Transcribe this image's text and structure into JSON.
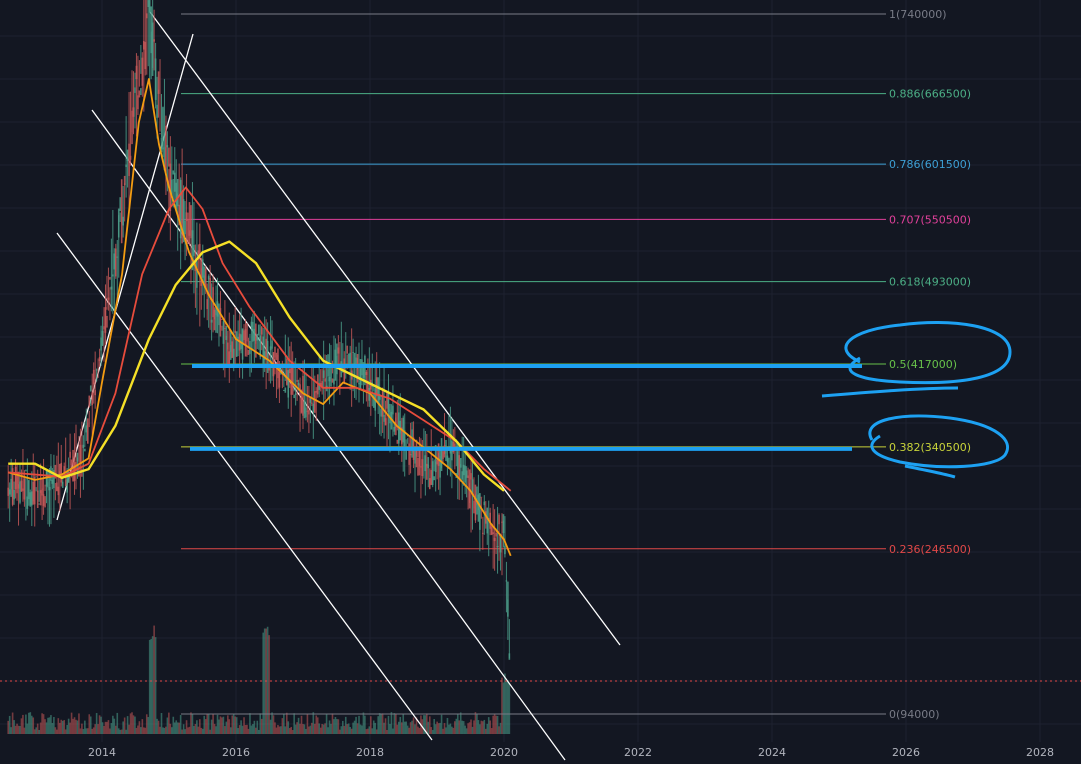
{
  "chart_data": {
    "type": "line",
    "title": "",
    "xlabel": "",
    "ylabel": "",
    "x_ticks": [
      "2014",
      "2016",
      "2018",
      "2020",
      "2022",
      "2024",
      "2026",
      "2028"
    ],
    "x_range": [
      2012.6,
      2028.5
    ],
    "y_range": [
      94000,
      740000
    ],
    "grid": true,
    "fib_levels": [
      {
        "ratio": "1",
        "price": "740000",
        "color": "#787b86"
      },
      {
        "ratio": "0.886",
        "price": "666500",
        "color": "#4caf86"
      },
      {
        "ratio": "0.786",
        "price": "601500",
        "color": "#3d9fd4"
      },
      {
        "ratio": "0.707",
        "price": "550500",
        "color": "#e0409a"
      },
      {
        "ratio": "0.618",
        "price": "493000",
        "color": "#4caf86"
      },
      {
        "ratio": "0.5",
        "price": "417000",
        "color": "#67c24a"
      },
      {
        "ratio": "0.382",
        "price": "340500",
        "color": "#c7d23a"
      },
      {
        "ratio": "0.236",
        "price": "246500",
        "color": "#e04848"
      },
      {
        "ratio": "0",
        "price": "94000",
        "color": "#787b86"
      }
    ],
    "series": [
      {
        "color": "#f39c12",
        "points": [
          [
            2012.6,
            317000
          ],
          [
            2013.0,
            310000
          ],
          [
            2013.4,
            315000
          ],
          [
            2013.8,
            330000
          ],
          [
            2014.0,
            400000
          ],
          [
            2014.3,
            500000
          ],
          [
            2014.55,
            640000
          ],
          [
            2014.7,
            680000
          ],
          [
            2014.85,
            620000
          ],
          [
            2015.0,
            580000
          ],
          [
            2015.3,
            520000
          ],
          [
            2015.6,
            480000
          ],
          [
            2016.0,
            440000
          ],
          [
            2016.5,
            420000
          ],
          [
            2017.0,
            390000
          ],
          [
            2017.3,
            380000
          ],
          [
            2017.6,
            400000
          ],
          [
            2018.0,
            390000
          ],
          [
            2018.4,
            360000
          ],
          [
            2018.8,
            340000
          ],
          [
            2019.2,
            320000
          ],
          [
            2019.5,
            300000
          ],
          [
            2019.8,
            270000
          ],
          [
            2020.0,
            255000
          ],
          [
            2020.1,
            240000
          ]
        ]
      },
      {
        "color": "#e74c3c",
        "points": [
          [
            2012.6,
            317000
          ],
          [
            2013.4,
            313000
          ],
          [
            2013.8,
            325000
          ],
          [
            2014.2,
            390000
          ],
          [
            2014.6,
            500000
          ],
          [
            2015.0,
            560000
          ],
          [
            2015.25,
            580000
          ],
          [
            2015.5,
            560000
          ],
          [
            2015.8,
            510000
          ],
          [
            2016.2,
            470000
          ],
          [
            2016.8,
            420000
          ],
          [
            2017.3,
            395000
          ],
          [
            2017.8,
            395000
          ],
          [
            2018.3,
            385000
          ],
          [
            2018.8,
            365000
          ],
          [
            2019.3,
            345000
          ],
          [
            2019.7,
            320000
          ],
          [
            2020.1,
            300000
          ]
        ]
      },
      {
        "color": "#f5e027",
        "points": [
          [
            2012.6,
            325000
          ],
          [
            2013.0,
            325000
          ],
          [
            2013.4,
            312000
          ],
          [
            2013.8,
            320000
          ],
          [
            2014.2,
            360000
          ],
          [
            2014.7,
            440000
          ],
          [
            2015.1,
            490000
          ],
          [
            2015.5,
            520000
          ],
          [
            2015.9,
            530000
          ],
          [
            2016.3,
            510000
          ],
          [
            2016.8,
            460000
          ],
          [
            2017.3,
            420000
          ],
          [
            2017.8,
            405000
          ],
          [
            2018.3,
            390000
          ],
          [
            2018.8,
            375000
          ],
          [
            2019.3,
            345000
          ],
          [
            2019.7,
            315000
          ],
          [
            2020.0,
            300000
          ]
        ]
      }
    ],
    "price_candles": [
      [
        2012.6,
        305000
      ],
      [
        2013.0,
        300000
      ],
      [
        2013.3,
        305000
      ],
      [
        2013.7,
        330000
      ],
      [
        2014.0,
        440000
      ],
      [
        2014.3,
        560000
      ],
      [
        2014.55,
        680000
      ],
      [
        2014.7,
        735000
      ],
      [
        2014.85,
        660000
      ],
      [
        2015.0,
        590000
      ],
      [
        2015.3,
        540000
      ],
      [
        2015.6,
        480000
      ],
      [
        2015.9,
        430000
      ],
      [
        2016.3,
        440000
      ],
      [
        2016.7,
        410000
      ],
      [
        2017.1,
        380000
      ],
      [
        2017.5,
        420000
      ],
      [
        2017.9,
        410000
      ],
      [
        2018.2,
        380000
      ],
      [
        2018.6,
        340000
      ],
      [
        2018.9,
        320000
      ],
      [
        2019.2,
        340000
      ],
      [
        2019.5,
        300000
      ],
      [
        2019.8,
        260000
      ],
      [
        2020.0,
        260000
      ],
      [
        2020.05,
        210000
      ],
      [
        2020.1,
        130000
      ]
    ],
    "annotations": [
      {
        "type": "hline",
        "level": "0.5",
        "color": "#1da1f2"
      },
      {
        "type": "hline",
        "level": "0.382",
        "color": "#1da1f2"
      }
    ]
  }
}
